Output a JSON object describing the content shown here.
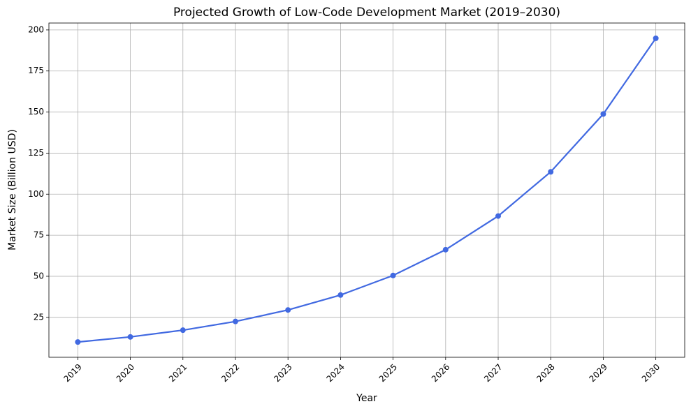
{
  "chart_data": {
    "type": "line",
    "title": "Projected Growth of Low-Code Development Market (2019–2030)",
    "x_label": "Year",
    "y_label": "Market Size (Billion USD)",
    "x": [
      2019,
      2020,
      2021,
      2022,
      2023,
      2024,
      2025,
      2026,
      2027,
      2028,
      2029,
      2030
    ],
    "series": [
      {
        "name": "Market Size",
        "color": "#4169e1",
        "values": [
          10,
          13.1,
          17.2,
          22.5,
          29.5,
          38.6,
          50.5,
          66.2,
          86.7,
          113.6,
          148.8,
          194.9
        ]
      }
    ],
    "xlim": [
      2018.45,
      2030.55
    ],
    "xticks": [
      2019,
      2020,
      2021,
      2022,
      2023,
      2024,
      2025,
      2026,
      2027,
      2028,
      2029,
      2030
    ],
    "ylim": [
      0.7,
      204.2
    ],
    "yticks": [
      25,
      50,
      75,
      100,
      125,
      150,
      175,
      200
    ],
    "grid": true
  }
}
